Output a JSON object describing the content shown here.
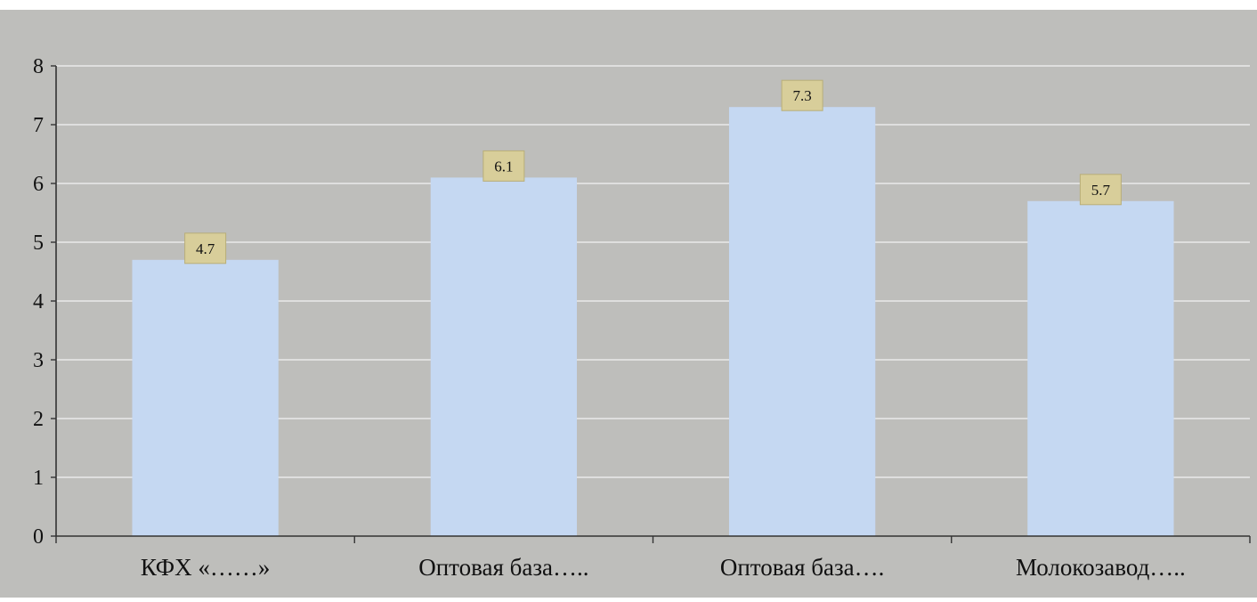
{
  "chart_data": {
    "type": "bar",
    "title": "",
    "xlabel": "",
    "ylabel": "",
    "categories": [
      "КФХ «……»",
      "Оптовая база…..",
      "Оптовая база….",
      "Молокозавод….."
    ],
    "values": [
      4.7,
      6.1,
      7.3,
      5.7
    ],
    "data_labels": [
      "4.7",
      "6.1",
      "7.3",
      "5.7"
    ],
    "ylim": [
      0,
      8
    ],
    "yticks": [
      0,
      1,
      2,
      3,
      4,
      5,
      6,
      7,
      8
    ],
    "grid": true,
    "legend": "none",
    "colors": {
      "bar": "#c5d8f2",
      "plot_background": "#bebebb",
      "gridline": "#eaeaea",
      "axis": "#333333",
      "label_box": "#d8ce9a",
      "text": "#111111"
    }
  }
}
